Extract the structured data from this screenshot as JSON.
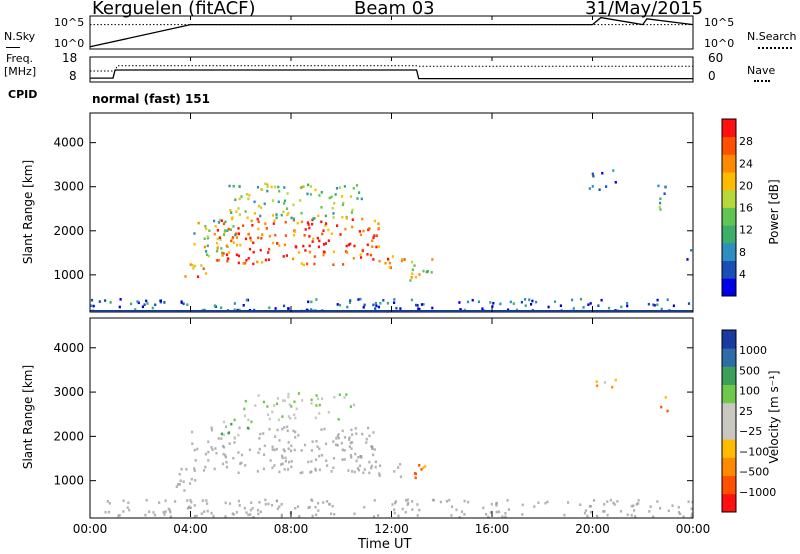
{
  "header": {
    "station": "Kerguelen (fitACF)",
    "beam": "Beam 03",
    "date": "31/May/2015"
  },
  "strip_labels": {
    "nsky": "N.Sky",
    "nsearch": "N.Search",
    "freq_line1": "Freq.",
    "freq_line2": "[MHz]",
    "nave": "Nave",
    "cpid": "CPID",
    "cpid_value": "normal (fast) 151"
  },
  "colors": {
    "missing_point": "#9a9a9a",
    "axis": "#000000"
  },
  "chart_data": [
    {
      "type": "line",
      "name": "noise-strip",
      "left_ticks": [
        "10^5",
        "10^0"
      ],
      "right_ticks": [
        "10^5",
        "10^0"
      ],
      "x": [
        "00:00",
        "04:00",
        "08:00",
        "12:00",
        "16:00",
        "20:00",
        "20:20",
        "22:00",
        "22:10",
        "00:00"
      ],
      "series": [
        {
          "name": "N.Sky",
          "style": "solid",
          "y_log10": [
            0.2,
            4.0,
            4.0,
            4.0,
            4.0,
            4.0,
            5.2,
            4.0,
            5.0,
            4.0
          ]
        },
        {
          "name": "N.Search",
          "style": "dotted",
          "y_log10": [
            4.0,
            4.0,
            4.0,
            4.0,
            4.0,
            4.0,
            4.0,
            4.0,
            4.0,
            4.0
          ]
        }
      ]
    },
    {
      "type": "line",
      "name": "freq-nave-strip",
      "left_ticks": [
        "18",
        "8"
      ],
      "right_ticks": [
        "60",
        "0"
      ],
      "freq": {
        "name": "Freq. [MHz]",
        "style": "solid",
        "points": [
          [
            "00:00",
            9.2
          ],
          [
            "00:55",
            9.2
          ],
          [
            "01:00",
            12.6
          ],
          [
            "13:00",
            12.6
          ],
          [
            "13:05",
            9.0
          ],
          [
            "24:00",
            9.0
          ]
        ]
      },
      "nave": {
        "name": "Nave",
        "style": "dotted",
        "points": [
          [
            "00:00",
            25
          ],
          [
            "01:00",
            25
          ],
          [
            "01:05",
            38
          ],
          [
            "13:00",
            38
          ],
          [
            "13:05",
            37
          ],
          [
            "24:00",
            37
          ]
        ]
      }
    },
    {
      "type": "heatmap",
      "name": "power-panel",
      "ylabel": "Slant Range [km]",
      "yticks": [
        "4000",
        "3000",
        "2000",
        "1000"
      ],
      "ylim": [
        180,
        4650
      ],
      "xlim_hours": [
        0,
        24
      ],
      "colorbar_label": "Power [dB]",
      "colorbar_ticks": [
        "28",
        "24",
        "20",
        "16",
        "12",
        "8",
        "4"
      ],
      "colors": [
        "#0000e8",
        "#1a4fb8",
        "#2e8ec0",
        "#3cae6a",
        "#61c454",
        "#b6d83a",
        "#ffbb00",
        "#ff8a00",
        "#ff5000",
        "#ff1010"
      ],
      "echo_regions": [
        {
          "t": [
            3.6,
            4.6
          ],
          "range_km": [
            850,
            1300
          ],
          "level": 0.75
        },
        {
          "t": [
            4.1,
            6.0
          ],
          "range_km": [
            1450,
            2300
          ],
          "level": 0.5
        },
        {
          "t": [
            5.0,
            11.5
          ],
          "range_km": [
            1250,
            2300
          ],
          "level": 0.9
        },
        {
          "t": [
            5.5,
            10.8
          ],
          "range_km": [
            2300,
            3100
          ],
          "level": 0.45
        },
        {
          "t": [
            11.4,
            12.6
          ],
          "range_km": [
            1100,
            1450
          ],
          "level": 0.7
        },
        {
          "t": [
            12.6,
            13.6
          ],
          "range_km": [
            900,
            1450
          ],
          "level": 0.55
        },
        {
          "t": [
            19.8,
            21.0
          ],
          "range_km": [
            2900,
            3400
          ],
          "level": 0.2
        },
        {
          "t": [
            22.5,
            23.0
          ],
          "range_km": [
            2500,
            3050
          ],
          "level": 0.3
        },
        {
          "t": [
            23.7,
            24.0
          ],
          "range_km": [
            1200,
            1600
          ],
          "level": 0.25
        },
        {
          "t": [
            0.0,
            24.0
          ],
          "range_km": [
            200,
            480
          ],
          "level": 0.15
        }
      ]
    },
    {
      "type": "heatmap",
      "name": "velocity-panel",
      "ylabel": "Slant Range [km]",
      "yticks": [
        "4000",
        "3000",
        "2000",
        "1000"
      ],
      "ylim": [
        180,
        4650
      ],
      "xlim_hours": [
        0,
        24
      ],
      "xlabel": "Time UT",
      "xticks": [
        "00:00",
        "04:00",
        "08:00",
        "12:00",
        "16:00",
        "20:00",
        "00:00"
      ],
      "colorbar_label": "Velocity [m s⁻¹]",
      "colorbar_ticks": [
        "1000",
        "500",
        "100",
        "25",
        "−25",
        "−100",
        "−500",
        "−1000"
      ],
      "colors": [
        "#ff1010",
        "#ff5000",
        "#ff8a00",
        "#ffbb00",
        "#c8c8c0",
        "#c8c8c0",
        "#70c84a",
        "#3ca05a",
        "#2e6ca8",
        "#1a3aa0"
      ],
      "ground_scatter_regions": [
        {
          "t": [
            4.0,
            11.4
          ],
          "range_km": [
            1200,
            2250
          ]
        },
        {
          "t": [
            3.2,
            4.2
          ],
          "range_km": [
            800,
            1300
          ]
        },
        {
          "t": [
            11.2,
            12.4
          ],
          "range_km": [
            1100,
            1450
          ]
        },
        {
          "t": [
            0.0,
            24.0
          ],
          "range_km": [
            200,
            600
          ]
        }
      ],
      "ionospheric_regions": [
        {
          "t": [
            12.6,
            13.4
          ],
          "range_km": [
            1050,
            1650
          ],
          "level": 0.25
        },
        {
          "t": [
            5.2,
            6.5
          ],
          "range_km": [
            2000,
            2500
          ],
          "level": 0.65
        },
        {
          "t": [
            6.0,
            10.5
          ],
          "range_km": [
            2400,
            3000
          ],
          "level": 0.55
        },
        {
          "t": [
            20.0,
            21.0
          ],
          "range_km": [
            2950,
            3300
          ],
          "level": 0.3
        },
        {
          "t": [
            22.5,
            23.0
          ],
          "range_km": [
            2600,
            2950
          ],
          "level": 0.2
        }
      ]
    }
  ]
}
